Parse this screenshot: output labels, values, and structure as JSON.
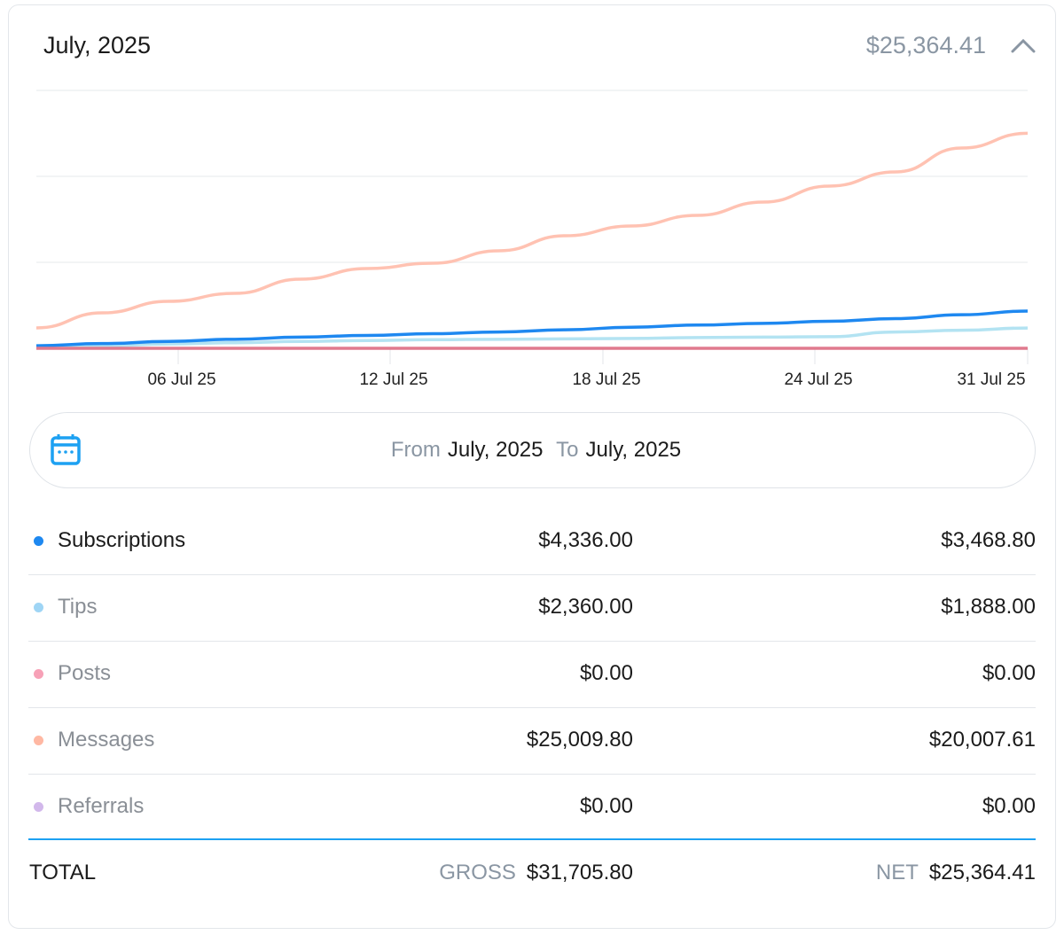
{
  "header": {
    "title": "July, 2025",
    "total": "$25,364.41",
    "collapse_icon": "chevron-up-icon"
  },
  "chart_data": {
    "type": "line",
    "x": [
      "01 Jul 25",
      "03 Jul 25",
      "05 Jul 25",
      "07 Jul 25",
      "09 Jul 25",
      "11 Jul 25",
      "13 Jul 25",
      "15 Jul 25",
      "17 Jul 25",
      "19 Jul 25",
      "21 Jul 25",
      "23 Jul 25",
      "25 Jul 25",
      "27 Jul 25",
      "29 Jul 25",
      "31 Jul 25"
    ],
    "x_tick_labels": [
      "06 Jul 25",
      "12 Jul 25",
      "18 Jul 25",
      "24 Jul 25",
      "31 Jul 25"
    ],
    "ylim": [
      0,
      30000
    ],
    "grid": true,
    "series": [
      {
        "key": "subscriptions",
        "color": "#1e88f0",
        "values": [
          300,
          550,
          800,
          1050,
          1300,
          1500,
          1700,
          1900,
          2150,
          2450,
          2700,
          2900,
          3150,
          3450,
          3900,
          4336
        ]
      },
      {
        "key": "tips",
        "color": "#b3e3f2",
        "values": [
          100,
          300,
          500,
          650,
          800,
          900,
          1000,
          1050,
          1100,
          1150,
          1250,
          1300,
          1350,
          1900,
          2100,
          2360
        ]
      },
      {
        "key": "posts",
        "color": "#e07a8e",
        "values": [
          0,
          0,
          0,
          0,
          0,
          0,
          0,
          0,
          0,
          0,
          0,
          0,
          0,
          0,
          0,
          0
        ]
      },
      {
        "key": "messages",
        "color": "#ffc2b2",
        "values": [
          2370,
          4120,
          5460,
          6390,
          8040,
          9280,
          9900,
          11340,
          13090,
          14230,
          15460,
          17010,
          18870,
          20520,
          23300,
          25009.8
        ]
      }
    ]
  },
  "date_range": {
    "from_label": "From",
    "from_value": "July, 2025",
    "to_label": "To",
    "to_value": "July, 2025",
    "icon": "calendar-icon",
    "accent": "#1da1f2"
  },
  "rows": [
    {
      "label": "Subscriptions",
      "gross": "$4,336.00",
      "net": "$3,468.80",
      "color": "#1e88f0"
    },
    {
      "label": "Tips",
      "gross": "$2,360.00",
      "net": "$1,888.00",
      "color": "#9fd5f5"
    },
    {
      "label": "Posts",
      "gross": "$0.00",
      "net": "$0.00",
      "color": "#f7a1b7"
    },
    {
      "label": "Messages",
      "gross": "$25,009.80",
      "net": "$20,007.61",
      "color": "#ffb8a3"
    },
    {
      "label": "Referrals",
      "gross": "$0.00",
      "net": "$0.00",
      "color": "#d2b8eb"
    }
  ],
  "total": {
    "label": "TOTAL",
    "gross_label": "GROSS",
    "gross": "$31,705.80",
    "net_label": "NET",
    "net": "$25,364.41"
  }
}
